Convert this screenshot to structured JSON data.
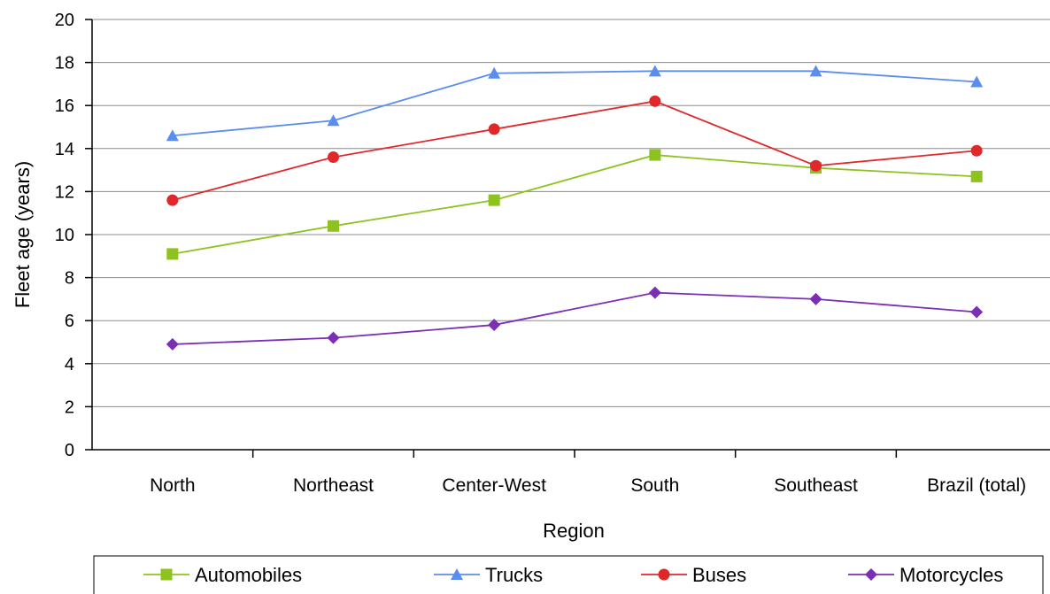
{
  "chart_data": {
    "type": "line",
    "xlabel": "Region",
    "ylabel": "Fleet age (years)",
    "categories": [
      "North",
      "Northeast",
      "Center-West",
      "South",
      "Southeast",
      "Brazil (total)"
    ],
    "ylim": [
      0,
      20
    ],
    "yticks": [
      0,
      2,
      4,
      6,
      8,
      10,
      12,
      14,
      16,
      18,
      20
    ],
    "grid": true,
    "legend_position": "bottom",
    "series": [
      {
        "name": "Automobiles",
        "color": "#8dc21f",
        "marker": "square",
        "values": [
          9.1,
          10.4,
          11.6,
          13.7,
          13.1,
          12.7
        ]
      },
      {
        "name": "Trucks",
        "color": "#5b8def",
        "marker": "triangle",
        "values": [
          14.6,
          15.3,
          17.5,
          17.6,
          17.6,
          17.1
        ]
      },
      {
        "name": "Buses",
        "color": "#e0282b",
        "marker": "circle",
        "values": [
          11.6,
          13.6,
          14.9,
          16.2,
          13.2,
          13.9
        ]
      },
      {
        "name": "Motorcycles",
        "color": "#7a2fb5",
        "marker": "diamond",
        "values": [
          4.9,
          5.2,
          5.8,
          7.3,
          7.0,
          6.4
        ]
      }
    ]
  }
}
